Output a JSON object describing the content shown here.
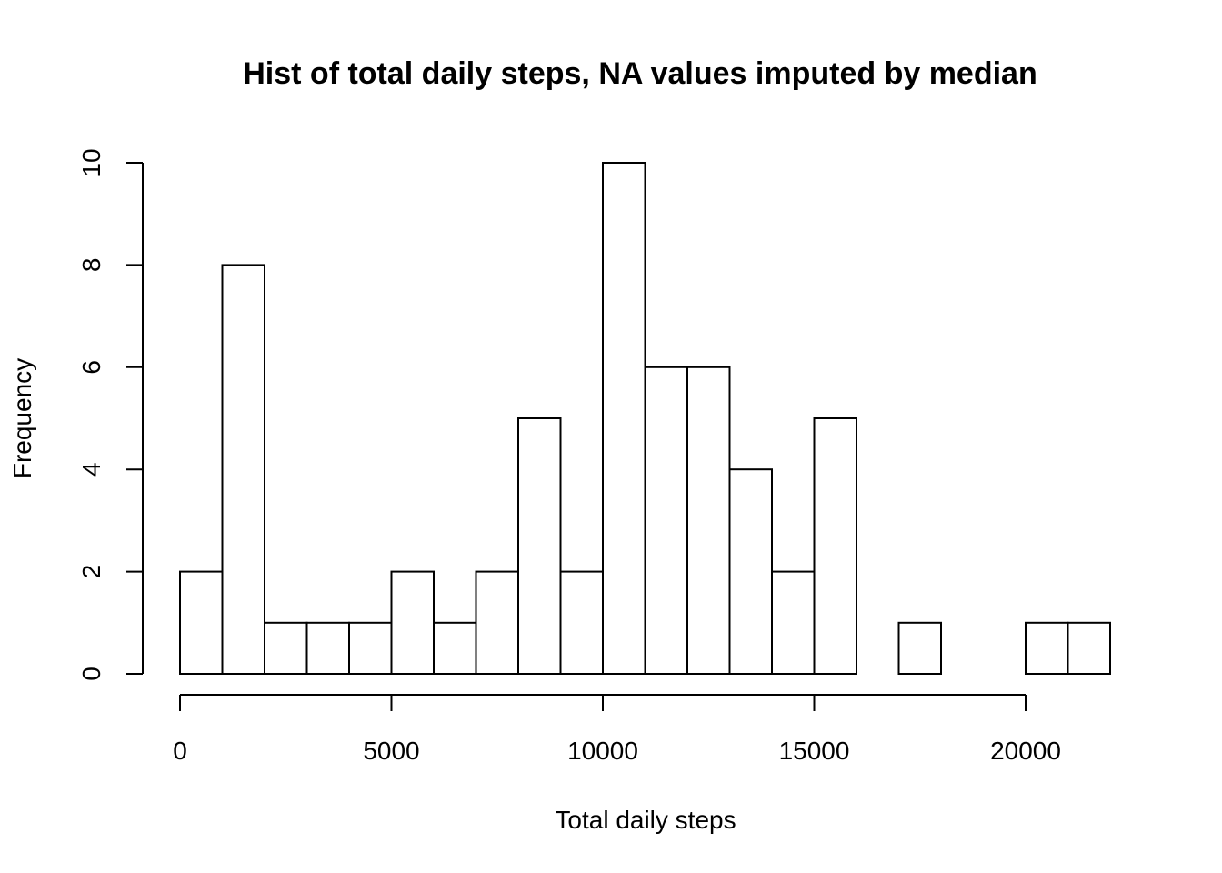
{
  "chart_data": {
    "type": "bar",
    "title": "Hist of total daily steps, NA values imputed by median",
    "xlabel": "Total daily steps",
    "ylabel": "Frequency",
    "bin_width": 1000,
    "bins": [
      {
        "x0": 0,
        "x1": 1000,
        "count": 2
      },
      {
        "x0": 1000,
        "x1": 2000,
        "count": 8
      },
      {
        "x0": 2000,
        "x1": 3000,
        "count": 1
      },
      {
        "x0": 3000,
        "x1": 4000,
        "count": 1
      },
      {
        "x0": 4000,
        "x1": 5000,
        "count": 1
      },
      {
        "x0": 5000,
        "x1": 6000,
        "count": 2
      },
      {
        "x0": 6000,
        "x1": 7000,
        "count": 1
      },
      {
        "x0": 7000,
        "x1": 8000,
        "count": 2
      },
      {
        "x0": 8000,
        "x1": 9000,
        "count": 5
      },
      {
        "x0": 9000,
        "x1": 10000,
        "count": 2
      },
      {
        "x0": 10000,
        "x1": 11000,
        "count": 10
      },
      {
        "x0": 11000,
        "x1": 12000,
        "count": 6
      },
      {
        "x0": 12000,
        "x1": 13000,
        "count": 6
      },
      {
        "x0": 13000,
        "x1": 14000,
        "count": 4
      },
      {
        "x0": 14000,
        "x1": 15000,
        "count": 2
      },
      {
        "x0": 15000,
        "x1": 16000,
        "count": 5
      },
      {
        "x0": 16000,
        "x1": 17000,
        "count": 0
      },
      {
        "x0": 17000,
        "x1": 18000,
        "count": 1
      },
      {
        "x0": 18000,
        "x1": 19000,
        "count": 0
      },
      {
        "x0": 19000,
        "x1": 20000,
        "count": 0
      },
      {
        "x0": 20000,
        "x1": 21000,
        "count": 1
      },
      {
        "x0": 21000,
        "x1": 22000,
        "count": 1
      }
    ],
    "xlim": [
      0,
      22000
    ],
    "ylim": [
      0,
      10
    ],
    "x_ticks": [
      0,
      5000,
      10000,
      15000,
      20000
    ],
    "x_tick_labels": [
      "0",
      "5000",
      "10000",
      "15000",
      "20000"
    ],
    "y_ticks": [
      0,
      2,
      4,
      6,
      8,
      10
    ],
    "y_tick_labels": [
      "0",
      "2",
      "4",
      "6",
      "8",
      "10"
    ],
    "grid": false,
    "legend": "none"
  }
}
